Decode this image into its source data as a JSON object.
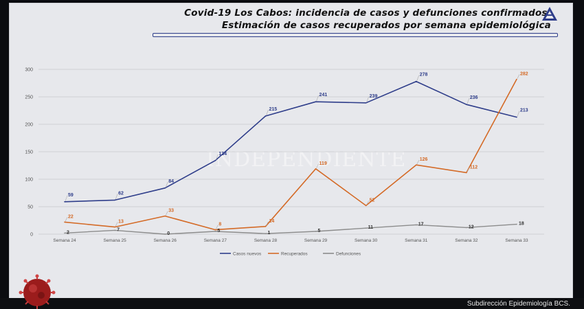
{
  "title": {
    "line1": "Covid-19 Los Cabos: incidencia de casos y defunciones confirmados.",
    "line2": "Estimación de casos recuperados por semana epidemiológica"
  },
  "footer": {
    "text": "Subdirección Epidemiología BCS."
  },
  "watermark": {
    "text": "INDEPENDIENTE"
  },
  "colors": {
    "casos": "#2e3d8a",
    "recuperados": "#d46a26",
    "defunciones": "#8c8c8c",
    "background": "#e7e8ec"
  },
  "icons": {
    "logo": "triangle-logo-icon",
    "virus": "coronavirus-icon"
  },
  "chart_data": {
    "type": "line",
    "categories": [
      "Semana 24",
      "Semana 25",
      "Semana 26",
      "Semana 27",
      "Semana 28",
      "Semana 29",
      "Semana 30",
      "Semana 31",
      "Semana 32",
      "Semana 33"
    ],
    "yticks": [
      0,
      50,
      100,
      150,
      200,
      250,
      300
    ],
    "ylim": [
      0,
      300
    ],
    "grid": true,
    "legend_position": "bottom",
    "series": [
      {
        "name": "Casos nuevos",
        "key": "casos",
        "values": [
          59,
          62,
          84,
          134,
          215,
          241,
          239,
          278,
          236,
          213
        ]
      },
      {
        "name": "Recuperados",
        "key": "recuperados",
        "values": [
          22,
          13,
          33,
          8,
          14,
          119,
          52,
          126,
          112,
          282
        ]
      },
      {
        "name": "Defunciones",
        "key": "defunciones",
        "values": [
          2,
          7,
          0,
          5,
          1,
          5,
          11,
          17,
          12,
          18
        ]
      }
    ]
  }
}
